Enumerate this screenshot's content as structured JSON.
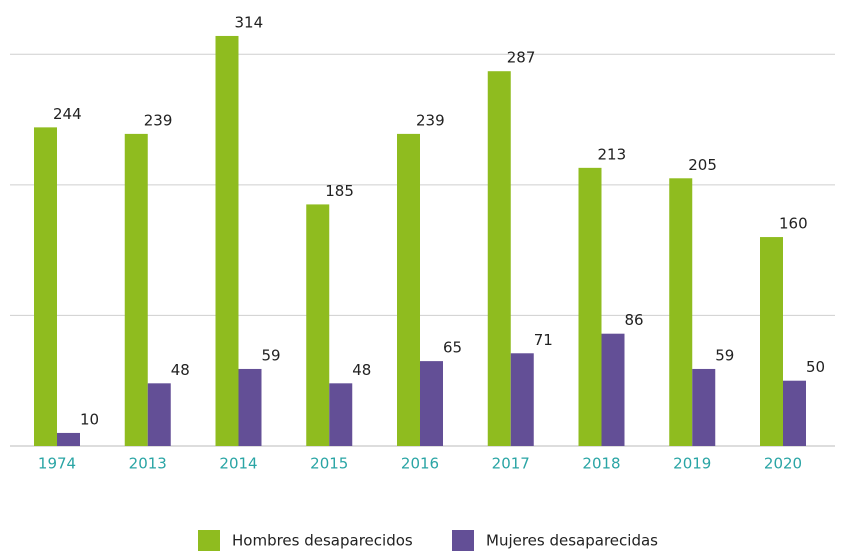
{
  "chart_data": {
    "type": "bar",
    "categories": [
      "1974",
      "2013",
      "2014",
      "2015",
      "2016",
      "2017",
      "2018",
      "2019",
      "2020"
    ],
    "series": [
      {
        "name": "Hombres desaparecidos",
        "color": "#8fbc1f",
        "values": [
          244,
          239,
          314,
          185,
          239,
          287,
          213,
          205,
          160
        ]
      },
      {
        "name": "Mujeres desaparecidas",
        "color": "#634f96",
        "values": [
          10,
          48,
          59,
          48,
          65,
          71,
          86,
          59,
          50
        ]
      }
    ],
    "ylim": [
      0,
      340
    ],
    "yticks": [
      100,
      200,
      300
    ],
    "grid": true,
    "legend": "bottom"
  }
}
